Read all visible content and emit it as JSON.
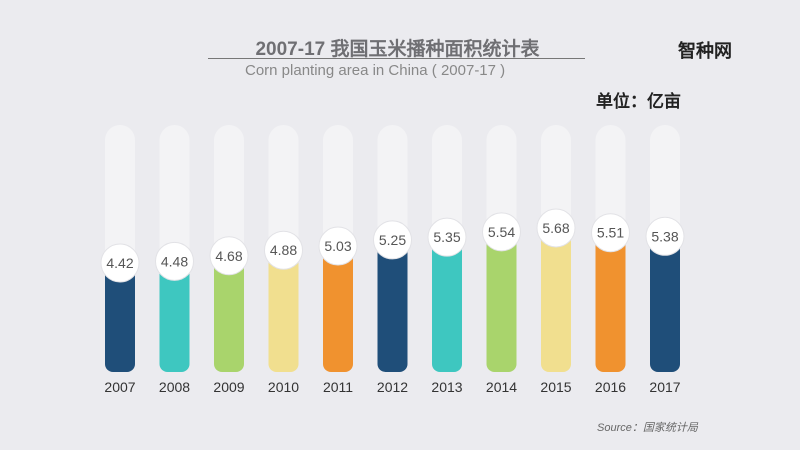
{
  "chart_data": {
    "type": "bar",
    "title": "2007-17 我国玉米播种面积统计表",
    "subtitle": "Corn planting area in China ( 2007-17 )",
    "unit": "单位：亿亩",
    "source": "Source：国家统计局",
    "logo": "智种网",
    "categories": [
      "2007",
      "2008",
      "2009",
      "2010",
      "2011",
      "2012",
      "2013",
      "2014",
      "2015",
      "2016",
      "2017"
    ],
    "values": [
      4.42,
      4.48,
      4.68,
      4.88,
      5.03,
      5.25,
      5.35,
      5.54,
      5.68,
      5.51,
      5.38
    ],
    "labels": [
      "4.42",
      "4.48",
      "4.68",
      "4.88",
      "5.03",
      "5.25",
      "5.35",
      "5.54",
      "5.68",
      "5.51",
      "5.38"
    ],
    "colors": [
      "#1f4e79",
      "#3ec7c0",
      "#a9d46c",
      "#f1df8f",
      "#f0922f",
      "#1f4e79",
      "#3ec7c0",
      "#a9d46c",
      "#f1df8f",
      "#f0922f",
      "#1f4e79"
    ],
    "track_color": "#f3f3f5",
    "grid": false
  }
}
